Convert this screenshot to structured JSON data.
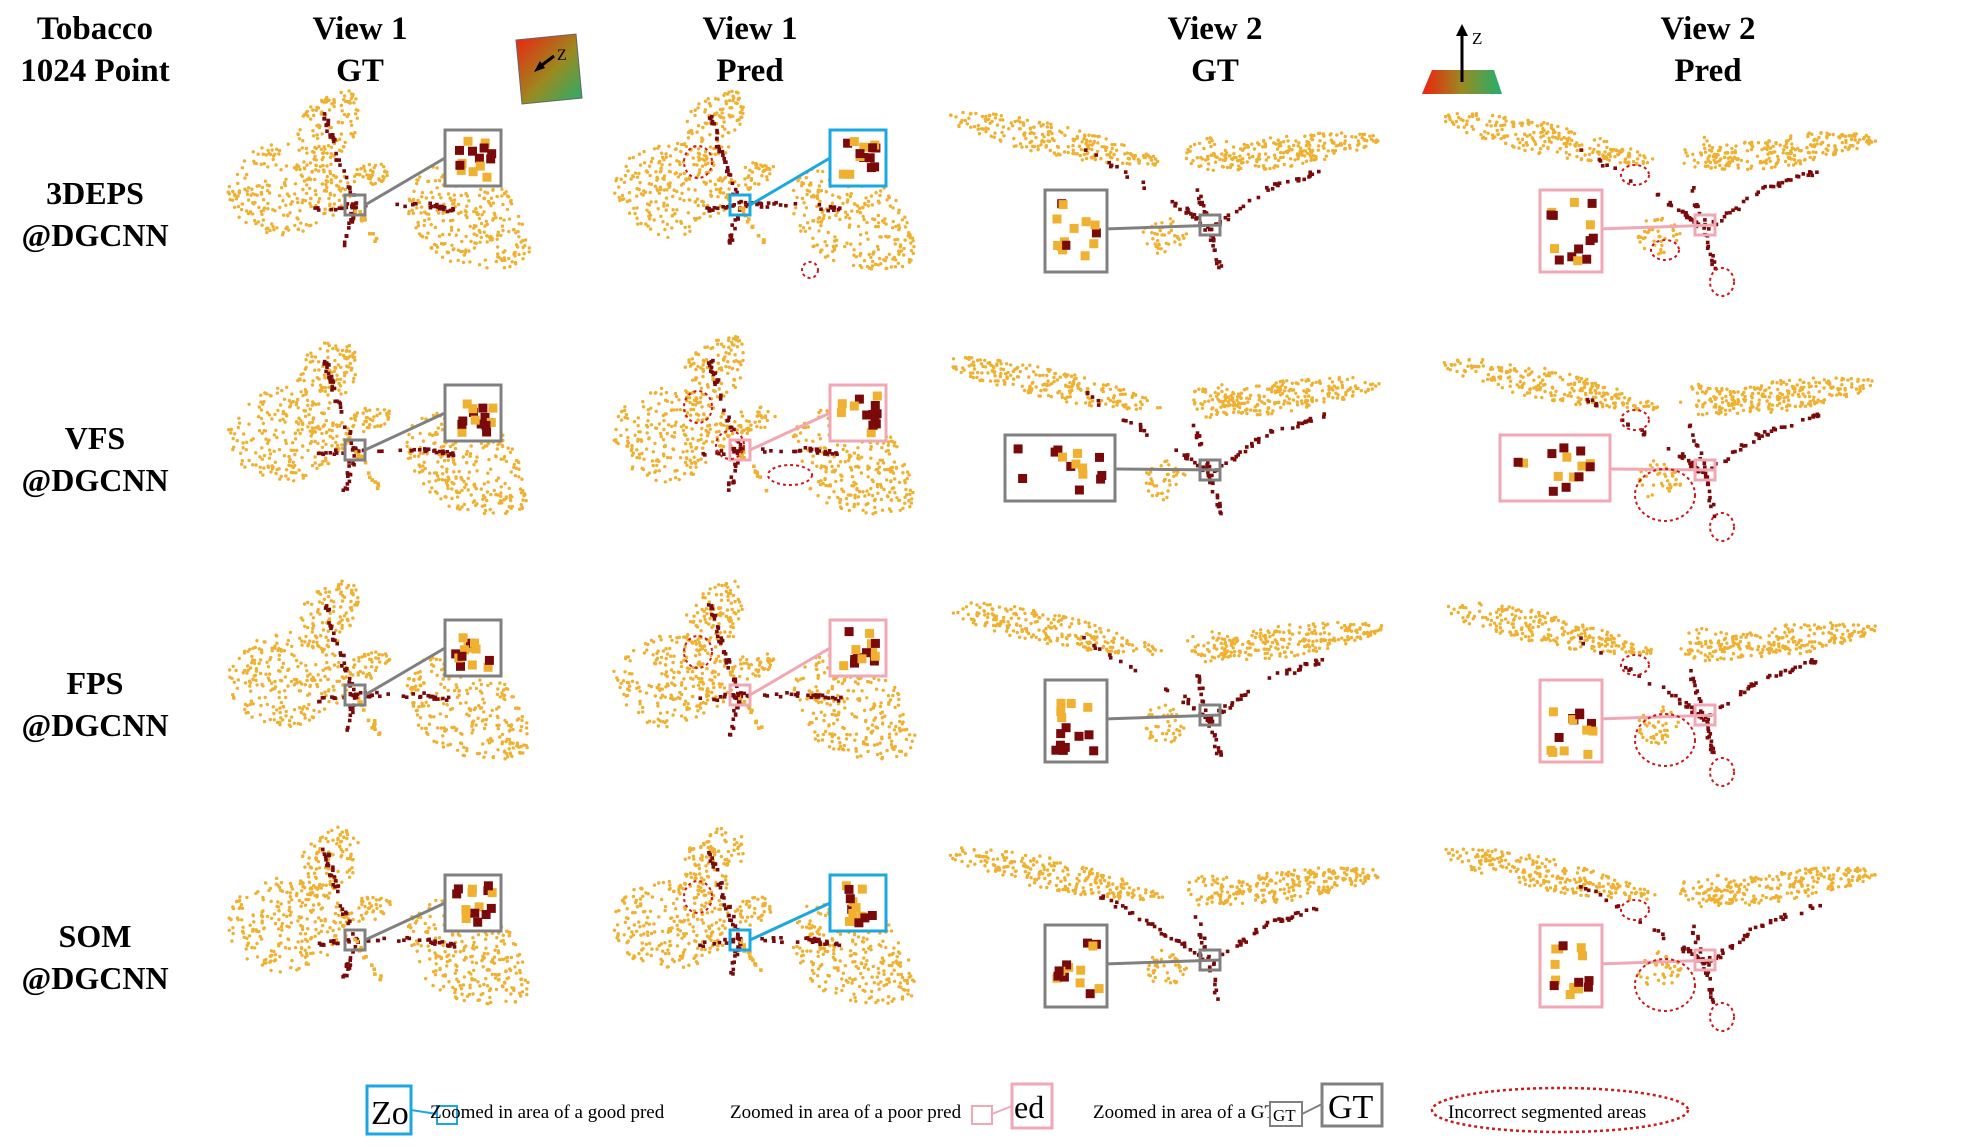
{
  "corner_header": {
    "line1": "Tobacco",
    "line2": "1024 Point"
  },
  "column_headers": [
    {
      "line1": "View 1",
      "line2": "GT"
    },
    {
      "line1": "View 1",
      "line2": "Pred"
    },
    {
      "line1": "View 2",
      "line2": "GT"
    },
    {
      "line1": "View 2",
      "line2": "Pred"
    }
  ],
  "axis_icons": {
    "view1_axis_label": "Z",
    "view2_axis_label": "Z"
  },
  "rows": [
    {
      "line1": "3DEPS",
      "line2": "@DGCNN",
      "view1_pred_zoom": "good",
      "view2_pred_zoom": "poor"
    },
    {
      "line1": "VFS",
      "line2": "@DGCNN",
      "view1_pred_zoom": "poor",
      "view2_pred_zoom": "poor"
    },
    {
      "line1": "FPS",
      "line2": "@DGCNN",
      "view1_pred_zoom": "poor",
      "view2_pred_zoom": "poor"
    },
    {
      "line1": "SOM",
      "line2": "@DGCNN",
      "view1_pred_zoom": "good",
      "view2_pred_zoom": "poor"
    }
  ],
  "legend": {
    "good": "Zoomed in area of a good pred",
    "poor": "Zoomed in area of a poor pred",
    "gt": "Zoomed in area of a GT",
    "gt_box_label": "GT",
    "incorrect": "Incorrect segmented areas"
  },
  "colors": {
    "leaf": "#f0b030",
    "stem": "#7a0a0a",
    "gt_box": "#808080",
    "good_box": "#1aa8e0",
    "poor_box": "#f0a8b4",
    "incorrect": "#d01818"
  }
}
